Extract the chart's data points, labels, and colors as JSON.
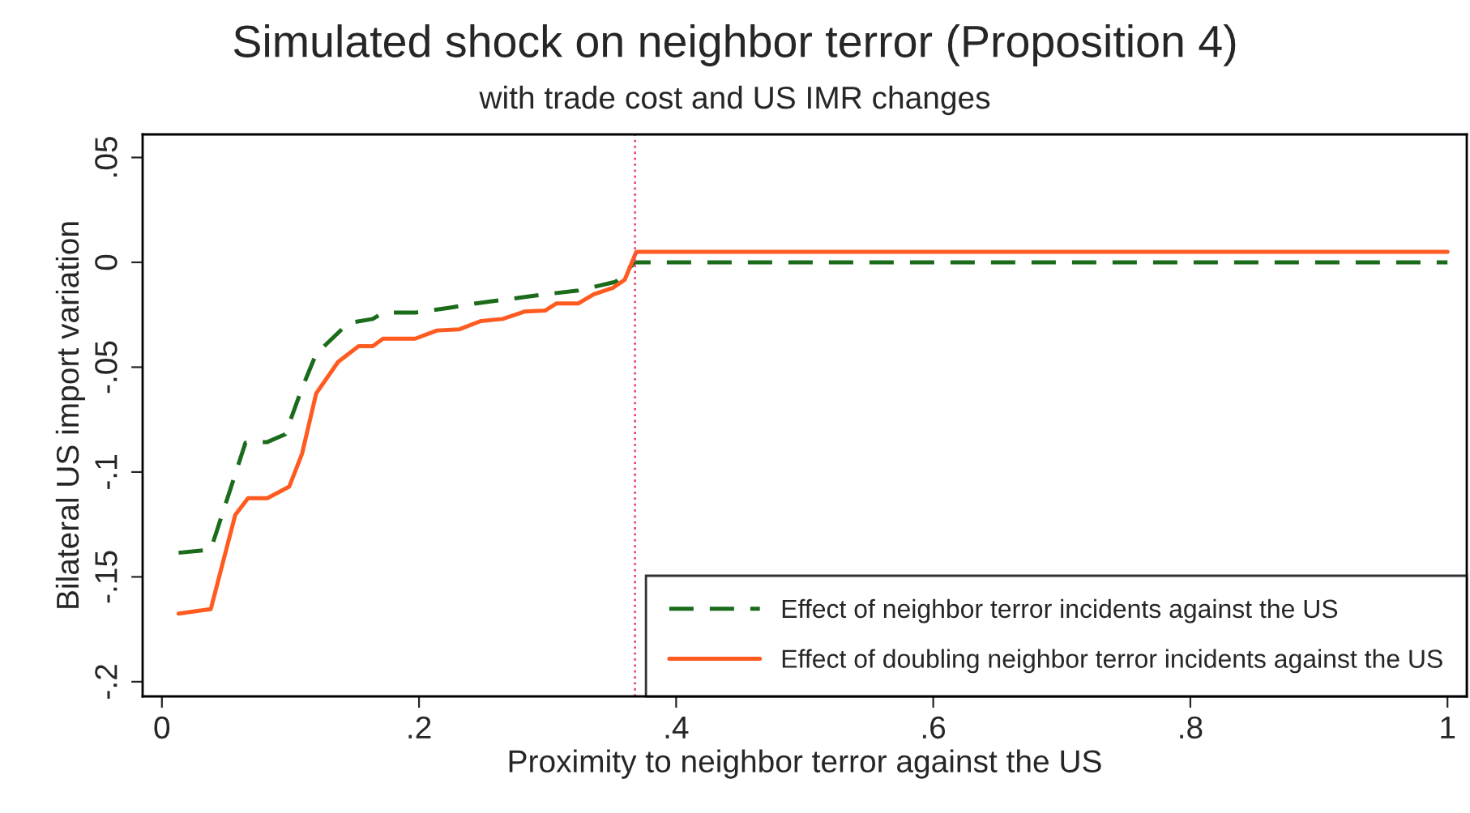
{
  "chart_data": {
    "type": "line",
    "title": "Simulated shock on neighbor terror (Proposition 4)",
    "subtitle": "with trade cost and US IMR changes",
    "xlabel": "Proximity to neighbor terror against the US",
    "ylabel": "Bilateral US import variation",
    "series": [
      {
        "name": "Effect of neighbor terror incidents against the US",
        "color": "#1a6b1a",
        "line_style": "dashed",
        "x": [
          0.013,
          0.038,
          0.065,
          0.082,
          0.096,
          0.109,
          0.12,
          0.145,
          0.164,
          0.172,
          0.197,
          0.223,
          0.244,
          0.273,
          0.299,
          0.324,
          0.353,
          0.368,
          1.0
        ],
        "values": [
          -0.1385,
          -0.137,
          -0.086,
          -0.0857,
          -0.082,
          -0.06,
          -0.0436,
          -0.029,
          -0.027,
          -0.024,
          -0.024,
          -0.0217,
          -0.0196,
          -0.0173,
          -0.0152,
          -0.0134,
          -0.0093,
          0.0,
          0.0
        ]
      },
      {
        "name": "Effect of doubling neighbor terror incidents against the US",
        "color": "#ff5a1f",
        "line_style": "solid",
        "x": [
          0.013,
          0.038,
          0.057,
          0.067,
          0.082,
          0.099,
          0.109,
          0.12,
          0.137,
          0.153,
          0.164,
          0.172,
          0.197,
          0.214,
          0.231,
          0.248,
          0.265,
          0.282,
          0.298,
          0.307,
          0.324,
          0.336,
          0.351,
          0.36,
          0.369,
          1.0
        ],
        "values": [
          -0.1675,
          -0.1654,
          -0.1205,
          -0.1125,
          -0.1125,
          -0.107,
          -0.0913,
          -0.0625,
          -0.0475,
          -0.04,
          -0.04,
          -0.0364,
          -0.0364,
          -0.0325,
          -0.032,
          -0.028,
          -0.027,
          -0.0235,
          -0.023,
          -0.0196,
          -0.0196,
          -0.0152,
          -0.0121,
          -0.0083,
          0.005,
          0.005
        ]
      }
    ],
    "ref_lines": [
      {
        "axis": "x",
        "value": 0.368,
        "color": "#e8507a",
        "line_style": "dotted"
      }
    ],
    "xlim": [
      -0.015,
      1.015
    ],
    "ylim": [
      -0.207,
      0.061
    ],
    "xticks": [
      {
        "value": 0,
        "label": "0"
      },
      {
        "value": 0.2,
        "label": ".2"
      },
      {
        "value": 0.4,
        "label": ".4"
      },
      {
        "value": 0.6,
        "label": ".6"
      },
      {
        "value": 0.8,
        "label": ".8"
      },
      {
        "value": 1,
        "label": "1"
      }
    ],
    "yticks": [
      {
        "value": -0.2,
        "label": "-.2"
      },
      {
        "value": -0.15,
        "label": "-.15"
      },
      {
        "value": -0.1,
        "label": "-.1"
      },
      {
        "value": -0.05,
        "label": "-.05"
      },
      {
        "value": 0,
        "label": "0"
      },
      {
        "value": 0.05,
        "label": ".05"
      }
    ],
    "grid": false,
    "legend": "bottom right"
  }
}
